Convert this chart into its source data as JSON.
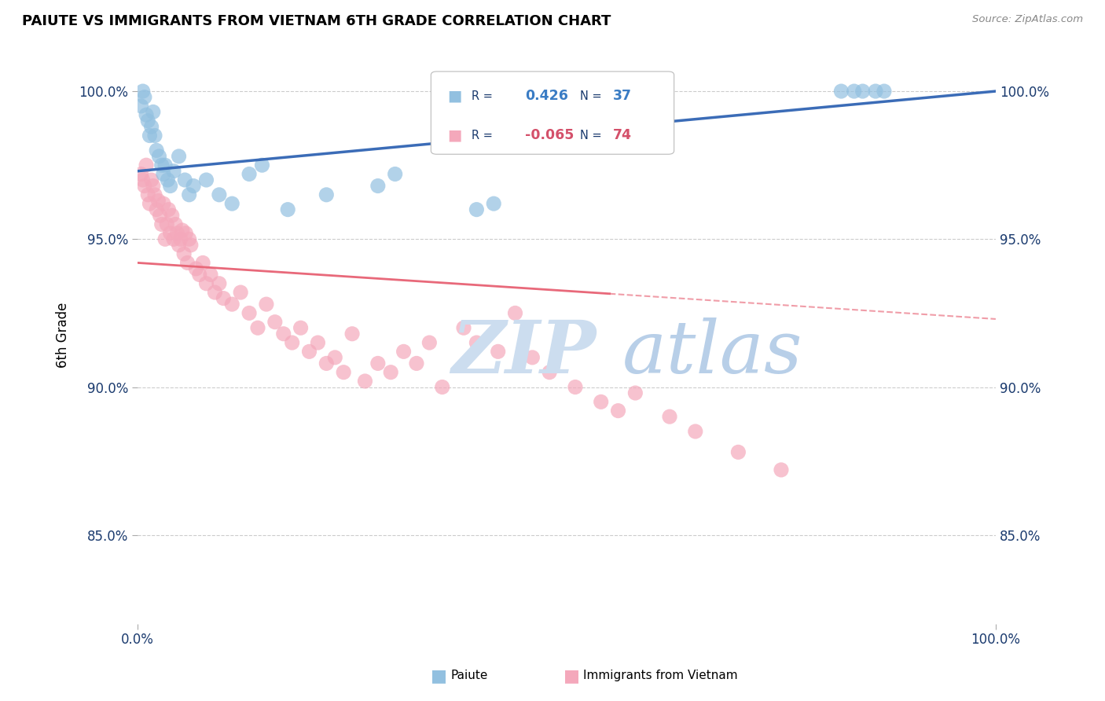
{
  "title": "PAIUTE VS IMMIGRANTS FROM VIETNAM 6TH GRADE CORRELATION CHART",
  "source": "Source: ZipAtlas.com",
  "ylabel": "6th Grade",
  "r_blue": 0.426,
  "n_blue": 37,
  "r_pink": -0.065,
  "n_pink": 74,
  "blue_color": "#92C0E0",
  "pink_color": "#F4A8BB",
  "blue_line_color": "#3B6CB7",
  "pink_line_color": "#E8697A",
  "legend_color": "#1a3a6e",
  "background_color": "#ffffff",
  "grid_color": "#cccccc",
  "watermark_zip_color": "#ccddef",
  "watermark_atlas_color": "#b8cfe8",
  "xlim": [
    0.0,
    1.0
  ],
  "ylim": [
    82.0,
    101.5
  ],
  "blue_x": [
    0.004,
    0.006,
    0.008,
    0.01,
    0.012,
    0.014,
    0.016,
    0.018,
    0.02,
    0.022,
    0.025,
    0.028,
    0.03,
    0.032,
    0.035,
    0.038,
    0.042,
    0.048,
    0.055,
    0.06,
    0.065,
    0.08,
    0.095,
    0.11,
    0.13,
    0.145,
    0.175,
    0.22,
    0.28,
    0.3,
    0.395,
    0.415,
    0.82,
    0.835,
    0.845,
    0.86,
    0.87
  ],
  "blue_y": [
    99.5,
    100.0,
    99.8,
    99.2,
    99.0,
    98.5,
    98.8,
    99.3,
    98.5,
    98.0,
    97.8,
    97.5,
    97.2,
    97.5,
    97.0,
    96.8,
    97.3,
    97.8,
    97.0,
    96.5,
    96.8,
    97.0,
    96.5,
    96.2,
    97.2,
    97.5,
    96.0,
    96.5,
    96.8,
    97.2,
    96.0,
    96.2,
    100.0,
    100.0,
    100.0,
    100.0,
    100.0
  ],
  "pink_x": [
    0.004,
    0.006,
    0.008,
    0.01,
    0.012,
    0.014,
    0.016,
    0.018,
    0.02,
    0.022,
    0.024,
    0.026,
    0.028,
    0.03,
    0.032,
    0.034,
    0.036,
    0.038,
    0.04,
    0.042,
    0.044,
    0.046,
    0.048,
    0.05,
    0.052,
    0.054,
    0.056,
    0.058,
    0.06,
    0.062,
    0.068,
    0.072,
    0.076,
    0.08,
    0.085,
    0.09,
    0.095,
    0.1,
    0.11,
    0.12,
    0.13,
    0.14,
    0.15,
    0.16,
    0.17,
    0.18,
    0.19,
    0.2,
    0.21,
    0.22,
    0.23,
    0.24,
    0.25,
    0.265,
    0.28,
    0.295,
    0.31,
    0.325,
    0.34,
    0.355,
    0.38,
    0.395,
    0.42,
    0.44,
    0.46,
    0.48,
    0.51,
    0.54,
    0.56,
    0.58,
    0.62,
    0.65,
    0.7,
    0.75
  ],
  "pink_y": [
    97.2,
    97.0,
    96.8,
    97.5,
    96.5,
    96.2,
    97.0,
    96.8,
    96.5,
    96.0,
    96.3,
    95.8,
    95.5,
    96.2,
    95.0,
    95.5,
    96.0,
    95.2,
    95.8,
    95.0,
    95.5,
    95.2,
    94.8,
    95.0,
    95.3,
    94.5,
    95.2,
    94.2,
    95.0,
    94.8,
    94.0,
    93.8,
    94.2,
    93.5,
    93.8,
    93.2,
    93.5,
    93.0,
    92.8,
    93.2,
    92.5,
    92.0,
    92.8,
    92.2,
    91.8,
    91.5,
    92.0,
    91.2,
    91.5,
    90.8,
    91.0,
    90.5,
    91.8,
    90.2,
    90.8,
    90.5,
    91.2,
    90.8,
    91.5,
    90.0,
    92.0,
    91.5,
    91.2,
    92.5,
    91.0,
    90.5,
    90.0,
    89.5,
    89.2,
    89.8,
    89.0,
    88.5,
    87.8,
    87.2
  ]
}
